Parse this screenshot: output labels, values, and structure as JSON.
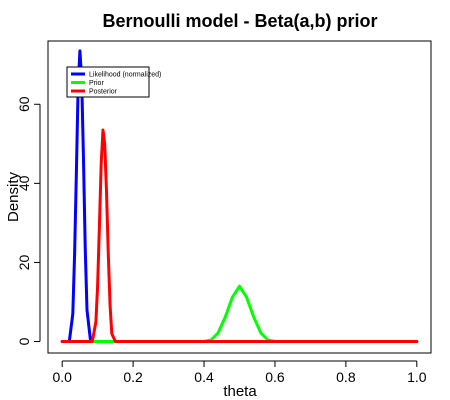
{
  "chart_data": {
    "type": "line",
    "title": "Bernoulli model - Beta(a,b) prior",
    "xlabel": "theta",
    "ylabel": "Density",
    "xlim": [
      -0.04,
      1.04
    ],
    "ylim": [
      -2.9,
      76
    ],
    "xticks": [
      0.0,
      0.2,
      0.4,
      0.6,
      0.8,
      1.0
    ],
    "xtick_labels": [
      "0.0",
      "0.2",
      "0.4",
      "0.6",
      "0.8",
      "1.0"
    ],
    "yticks": [
      0,
      20,
      40,
      60
    ],
    "ytick_labels": [
      "0",
      "20",
      "40",
      "60"
    ],
    "grid": false,
    "legend_position": "top-left",
    "series": [
      {
        "name": "Likelihood (normalized)",
        "color": "#0000ff",
        "x": [
          0.0,
          0.02,
          0.03,
          0.035,
          0.04,
          0.045,
          0.05,
          0.055,
          0.06,
          0.065,
          0.07,
          0.08,
          0.1,
          1.0
        ],
        "y": [
          0,
          0,
          7,
          22,
          43,
          64,
          73.5,
          66,
          46,
          24,
          8,
          0,
          0,
          0
        ]
      },
      {
        "name": "Prior",
        "color": "#00ff00",
        "x": [
          0.0,
          0.4,
          0.42,
          0.44,
          0.46,
          0.48,
          0.5,
          0.52,
          0.54,
          0.56,
          0.58,
          0.6,
          1.0
        ],
        "y": [
          0,
          0,
          0.4,
          2.2,
          6.2,
          11.2,
          14.0,
          11.2,
          6.2,
          2.2,
          0.4,
          0,
          0
        ]
      },
      {
        "name": "Posterior",
        "color": "#ff0000",
        "x": [
          0.0,
          0.085,
          0.095,
          0.1,
          0.105,
          0.11,
          0.115,
          0.12,
          0.125,
          0.13,
          0.135,
          0.14,
          0.15,
          0.42,
          0.58,
          1.0
        ],
        "y": [
          0,
          0,
          5,
          14,
          29,
          45,
          53.5,
          50,
          38,
          22,
          9,
          2,
          0,
          0,
          0,
          0
        ]
      }
    ]
  }
}
